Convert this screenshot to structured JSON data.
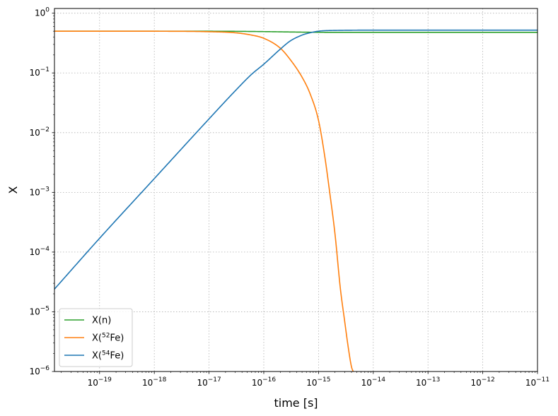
{
  "chart_data": {
    "type": "line",
    "title": "",
    "xlabel": "time [s]",
    "ylabel": "X",
    "xscale": "log",
    "yscale": "log",
    "xlim": [
      1.5e-20,
      1e-11
    ],
    "ylim": [
      1e-06,
      1.2
    ],
    "grid": true,
    "legend_position": "lower-left",
    "xticks": [
      {
        "value": 1e-19,
        "mant": "10",
        "exp": "−19"
      },
      {
        "value": 1e-18,
        "mant": "10",
        "exp": "−18"
      },
      {
        "value": 1e-17,
        "mant": "10",
        "exp": "−17"
      },
      {
        "value": 1e-16,
        "mant": "10",
        "exp": "−16"
      },
      {
        "value": 1e-15,
        "mant": "10",
        "exp": "−15"
      },
      {
        "value": 1e-14,
        "mant": "10",
        "exp": "−14"
      },
      {
        "value": 1e-13,
        "mant": "10",
        "exp": "−13"
      },
      {
        "value": 1e-12,
        "mant": "10",
        "exp": "−12"
      },
      {
        "value": 1e-11,
        "mant": "10",
        "exp": "−11"
      }
    ],
    "yticks": [
      {
        "value": 1e-06,
        "mant": "10",
        "exp": "−6"
      },
      {
        "value": 1e-05,
        "mant": "10",
        "exp": "−5"
      },
      {
        "value": 0.0001,
        "mant": "10",
        "exp": "−4"
      },
      {
        "value": 0.001,
        "mant": "10",
        "exp": "−3"
      },
      {
        "value": 0.01,
        "mant": "10",
        "exp": "−2"
      },
      {
        "value": 0.1,
        "mant": "10",
        "exp": "−1"
      },
      {
        "value": 1,
        "mant": "10",
        "exp": "0"
      }
    ],
    "series": [
      {
        "name": "X(n)",
        "legend_base": "X(n)",
        "legend_sup": "",
        "legend_tail": "",
        "color": "#2ca02c",
        "x": [
          1.5e-20,
          1e-19,
          1e-18,
          1e-17,
          3e-17,
          1e-16,
          3e-16,
          6e-16,
          1e-15,
          2e-15,
          1e-14,
          1e-13,
          1e-12,
          1e-11
        ],
        "y": [
          0.5,
          0.5,
          0.5,
          0.499,
          0.497,
          0.492,
          0.485,
          0.481,
          0.479,
          0.478,
          0.478,
          0.478,
          0.478,
          0.478
        ]
      },
      {
        "name": "X(52Fe)",
        "legend_base": "X(",
        "legend_sup": "52",
        "legend_tail": "Fe)",
        "color": "#ff7f0e",
        "x": [
          1.5e-20,
          1e-19,
          1e-18,
          1e-17,
          3e-17,
          6e-17,
          1e-16,
          2e-16,
          3e-16,
          5e-16,
          7e-16,
          1e-15,
          1.3e-15,
          1.6e-15,
          2e-15,
          2.5e-15,
          3e-15,
          3.5e-15,
          4e-15,
          4.3e-15
        ],
        "y": [
          0.5,
          0.5,
          0.499,
          0.49,
          0.47,
          0.43,
          0.38,
          0.26,
          0.17,
          0.085,
          0.045,
          0.016,
          0.004,
          0.001,
          0.0002,
          2.5e-05,
          7e-06,
          2.5e-06,
          1.2e-06,
          1e-06
        ]
      },
      {
        "name": "X(54Fe)",
        "legend_base": "X(",
        "legend_sup": "54",
        "legend_tail": "Fe)",
        "color": "#1f77b4",
        "x": [
          1.5e-20,
          1e-19,
          1e-18,
          1e-17,
          3e-17,
          6e-17,
          1e-16,
          2e-16,
          3e-16,
          5e-16,
          7e-16,
          1e-15,
          2e-15,
          1e-14,
          1e-13,
          1e-12,
          1e-11
        ],
        "y": [
          2.4e-05,
          0.00017,
          0.0017,
          0.017,
          0.05,
          0.095,
          0.14,
          0.25,
          0.34,
          0.43,
          0.47,
          0.5,
          0.515,
          0.52,
          0.52,
          0.52,
          0.52
        ]
      }
    ]
  }
}
